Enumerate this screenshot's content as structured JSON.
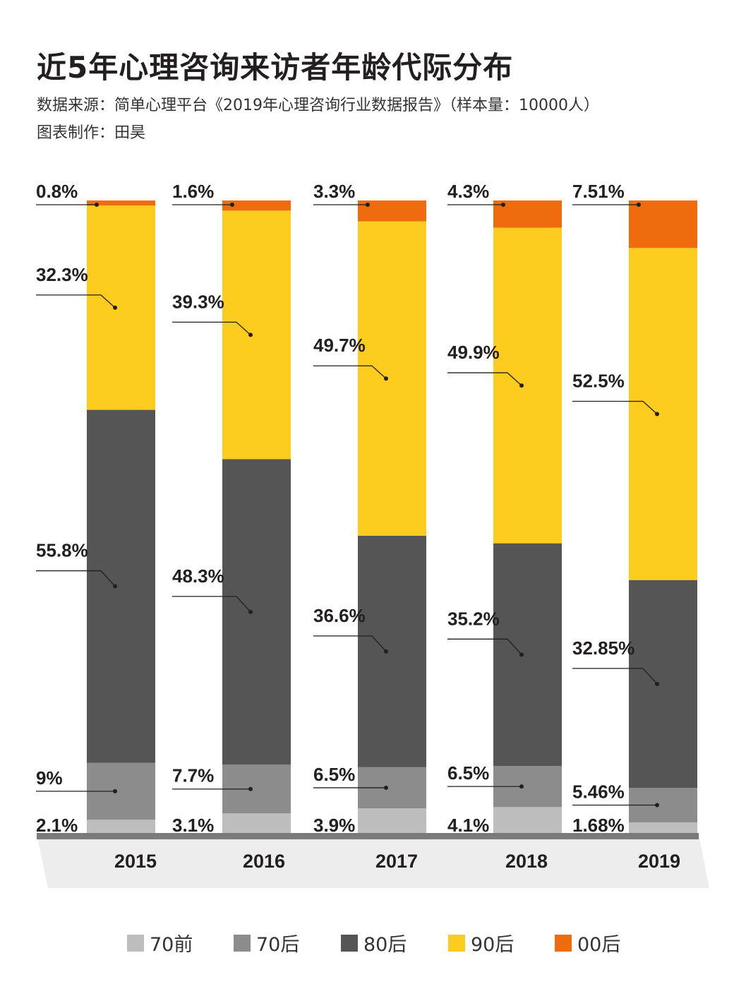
{
  "title": "近5年心理咨询来访者年龄代际分布",
  "source": "数据来源：简单心理平台《2019年心理咨询行业数据报告》（样本量：10000人）",
  "author": "图表制作：田昊",
  "chart_data": {
    "type": "bar",
    "stacked": true,
    "normalized": true,
    "categories": [
      "2015",
      "2016",
      "2017",
      "2018",
      "2019"
    ],
    "series": [
      {
        "name": "70前",
        "color": "#bdbdbd",
        "values": [
          2.1,
          3.1,
          3.9,
          4.1,
          1.68
        ],
        "labels": [
          "2.1%",
          "3.1%",
          "3.9%",
          "4.1%",
          "1.68%"
        ]
      },
      {
        "name": "70后",
        "color": "#8c8c8c",
        "values": [
          9,
          7.7,
          6.5,
          6.5,
          5.46
        ],
        "labels": [
          "9%",
          "7.7%",
          "6.5%",
          "6.5%",
          "5.46%"
        ]
      },
      {
        "name": "80后",
        "color": "#555555",
        "values": [
          55.8,
          48.3,
          36.6,
          35.2,
          32.85
        ],
        "labels": [
          "55.8%",
          "48.3%",
          "36.6%",
          "35.2%",
          "32.85%"
        ]
      },
      {
        "name": "90后",
        "color": "#fccc1f",
        "values": [
          32.3,
          39.3,
          49.7,
          49.9,
          52.5
        ],
        "labels": [
          "32.3%",
          "39.3%",
          "49.7%",
          "49.9%",
          "52.5%"
        ]
      },
      {
        "name": "00后",
        "color": "#ee6b0e",
        "values": [
          0.8,
          1.6,
          3.3,
          4.3,
          7.51
        ],
        "labels": [
          "0.8%",
          "1.6%",
          "3.3%",
          "4.3%",
          "7.51%"
        ]
      }
    ],
    "legend_position": "bottom",
    "grid": false
  }
}
